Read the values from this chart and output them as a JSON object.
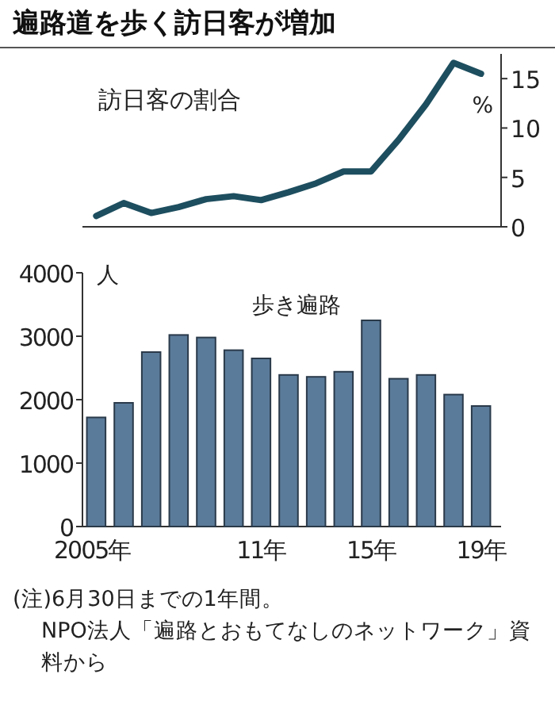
{
  "chart_data": [
    {
      "type": "line",
      "title": "遍路道を歩く訪日客が増加",
      "subtitle": "訪日客の割合",
      "ylabel": "%",
      "categories": [
        null,
        null,
        null,
        null,
        null,
        null,
        null,
        null,
        null,
        null,
        null,
        null,
        null,
        null,
        null
      ],
      "series": [
        {
          "color": "#1d4e5f",
          "values": [
            1.1,
            2.4,
            1.4,
            2.0,
            2.8,
            3.1,
            2.7,
            3.5,
            4.4,
            5.6,
            5.6,
            8.8,
            12.4,
            16.6,
            15.5
          ]
        }
      ],
      "ylim": [
        0,
        17.5
      ],
      "yticks": [
        0,
        5,
        10,
        15
      ],
      "grid": false
    },
    {
      "type": "bar",
      "title": "歩き遍路",
      "ylabel": "人",
      "categories": [
        "2005年",
        null,
        null,
        null,
        null,
        null,
        "11年",
        null,
        null,
        null,
        "15年",
        null,
        null,
        null,
        "19年"
      ],
      "series": [
        {
          "color": "#5b7b9a",
          "values": [
            1720,
            1950,
            2750,
            3020,
            2980,
            2780,
            2650,
            2390,
            2360,
            2440,
            3250,
            2330,
            2390,
            2080,
            1900
          ]
        }
      ],
      "ylim": [
        0,
        4000
      ],
      "yticks": [
        0,
        1000,
        2000,
        3000,
        4000
      ],
      "grid": false,
      "annotations": [
        "(注)6月30日までの1年間。",
        "NPO法人「遍路とおもてなしのネットワーク」資料から"
      ]
    }
  ]
}
